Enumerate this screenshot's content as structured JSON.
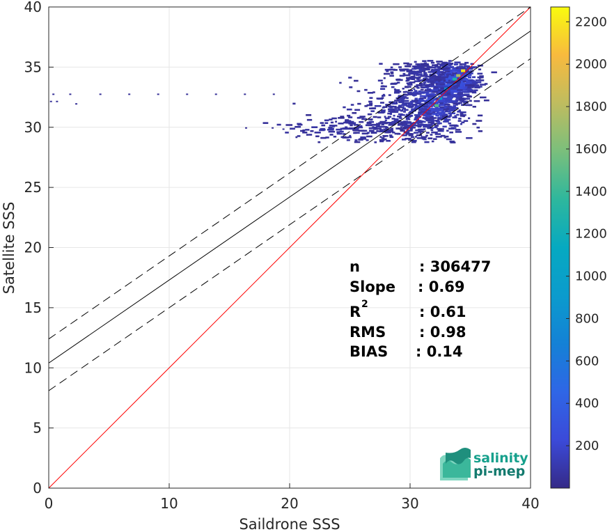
{
  "chart_data": {
    "type": "heatmap",
    "xlabel": "Saildrone SSS",
    "ylabel": "Satellite SSS",
    "xlim": [
      0,
      40
    ],
    "ylim": [
      0,
      40
    ],
    "x_ticks": [
      0,
      10,
      20,
      30,
      40
    ],
    "y_ticks": [
      0,
      5,
      10,
      15,
      20,
      25,
      30,
      35,
      40
    ],
    "grid": true,
    "colorbar": {
      "colormap": "parula",
      "range": [
        0,
        2270
      ],
      "ticks": [
        200,
        400,
        600,
        800,
        1000,
        1200,
        1400,
        1600,
        1800,
        2000,
        2200
      ]
    },
    "lines": [
      {
        "kind": "one-to-one",
        "color": "#ff0000",
        "intercept": 0,
        "slope": 1
      },
      {
        "kind": "regression",
        "color": "#000000",
        "style": "solid",
        "intercept": 10.4,
        "slope": 0.69
      },
      {
        "kind": "regression-upper",
        "color": "#000000",
        "style": "dashed",
        "intercept": 12.4,
        "slope": 0.69
      },
      {
        "kind": "regression-lower",
        "color": "#000000",
        "style": "dashed",
        "intercept": 8.1,
        "slope": 0.69
      }
    ],
    "density_blobs": [
      {
        "x": 33.4,
        "y": 33.9,
        "sx": 1.0,
        "sy": 0.8,
        "weight": 1.0,
        "count": 550
      },
      {
        "x": 31.8,
        "y": 32.0,
        "sx": 1.4,
        "sy": 1.3,
        "weight": 0.55,
        "count": 450
      },
      {
        "x": 29.5,
        "y": 31.2,
        "sx": 2.2,
        "sy": 1.4,
        "weight": 0.15,
        "count": 320
      },
      {
        "x": 25.0,
        "y": 29.9,
        "sx": 2.4,
        "sy": 0.6,
        "weight": 0.08,
        "count": 160
      },
      {
        "x": 31.0,
        "y": 34.6,
        "sx": 1.6,
        "sy": 0.5,
        "weight": 0.12,
        "count": 150
      }
    ],
    "hot_spots": [
      {
        "x": 34.4,
        "y": 34.7,
        "value": 2200
      },
      {
        "x": 34.0,
        "y": 34.3,
        "value": 1750
      },
      {
        "x": 33.7,
        "y": 34.0,
        "value": 1300
      },
      {
        "x": 32.2,
        "y": 31.8,
        "value": 1500
      },
      {
        "x": 32.5,
        "y": 32.4,
        "value": 900
      },
      {
        "x": 33.0,
        "y": 33.2,
        "value": 700
      }
    ],
    "outliers": [
      {
        "x": 0.1,
        "y": 32.2
      },
      {
        "x": 0.6,
        "y": 32.2
      },
      {
        "x": 0.3,
        "y": 32.8
      },
      {
        "x": 1.7,
        "y": 32.8
      },
      {
        "x": 4.2,
        "y": 32.8
      },
      {
        "x": 6.6,
        "y": 32.8
      },
      {
        "x": 9.0,
        "y": 32.8
      },
      {
        "x": 11.4,
        "y": 32.8
      },
      {
        "x": 13.8,
        "y": 32.8
      },
      {
        "x": 16.2,
        "y": 32.8
      },
      {
        "x": 18.6,
        "y": 32.8
      },
      {
        "x": 2.2,
        "y": 32.0
      },
      {
        "x": 16.3,
        "y": 30.0
      },
      {
        "x": 18.5,
        "y": 30.0
      },
      {
        "x": 19.4,
        "y": 29.9
      }
    ],
    "stats": {
      "n_label": "n",
      "n_value": ": 306477",
      "slope_label": "Slope",
      "slope_value": ": 0.69",
      "r2_label": "R",
      "r2_sup": "2",
      "r2_value": ": 0.61",
      "rms_label": "RMS",
      "rms_value": ": 0.98",
      "bias_label": "BIAS",
      "bias_value": ": 0.14"
    }
  },
  "logo": {
    "line1": "salinity",
    "line2": "pi-mep"
  }
}
